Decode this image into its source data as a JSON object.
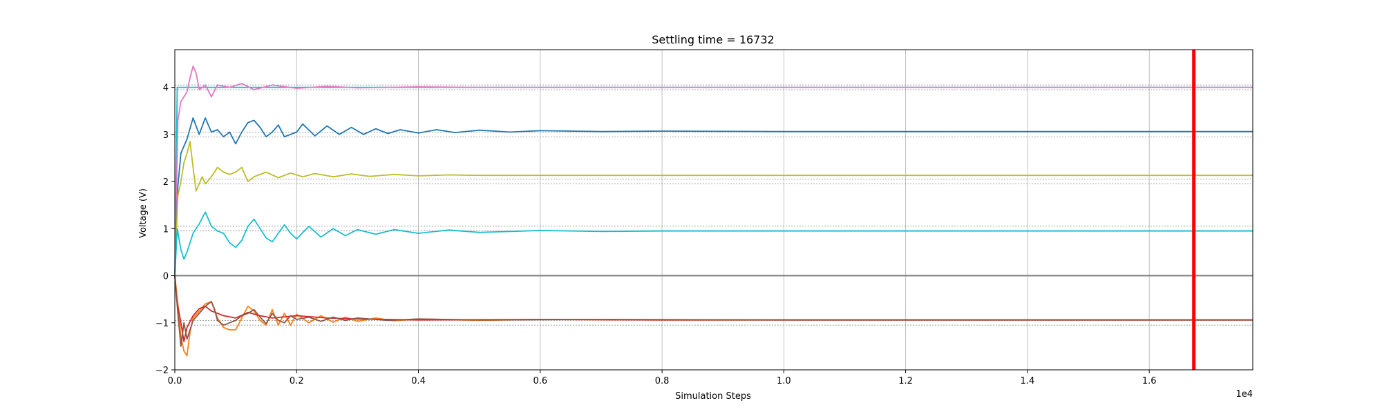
{
  "chart_data": {
    "type": "line",
    "title": "Settling time = 16732",
    "xlabel": "Simulation Steps",
    "ylabel": "Voltage (V)",
    "x_offset_text": "1e4",
    "xlim": [
      0,
      1.77
    ],
    "ylim": [
      -2,
      4.8
    ],
    "xticks": [
      0.0,
      0.2,
      0.4,
      0.6,
      0.8,
      1.0,
      1.2,
      1.4,
      1.6
    ],
    "xtick_labels": [
      "0.0",
      "0.2",
      "0.4",
      "0.6",
      "0.8",
      "1.0",
      "1.2",
      "1.4",
      "1.6"
    ],
    "yticks": [
      -2,
      -1,
      0,
      1,
      2,
      3,
      4
    ],
    "ytick_labels": [
      "−2",
      "−1",
      "0",
      "1",
      "2",
      "3",
      "4"
    ],
    "grid": "vertical",
    "settling_marker": {
      "x": 1.6732,
      "color": "#ff0000"
    },
    "zero_line": {
      "y": 0,
      "color": "#808080"
    },
    "reference_bands": [
      {
        "center": 4.0,
        "half_width": 0.05
      },
      {
        "center": 3.0,
        "half_width": 0.05
      },
      {
        "center": 2.0,
        "half_width": 0.05
      },
      {
        "center": 1.0,
        "half_width": 0.05
      },
      {
        "center": -1.0,
        "half_width": 0.05
      }
    ],
    "series": [
      {
        "color": "#17becf",
        "points": [
          [
            0,
            0
          ],
          [
            0.004,
            4.0
          ],
          [
            0.02,
            4.0
          ],
          [
            1.77,
            4.0
          ]
        ]
      },
      {
        "color": "#e377c2",
        "points": [
          [
            0,
            0
          ],
          [
            0.005,
            3.3
          ],
          [
            0.01,
            3.7
          ],
          [
            0.02,
            3.9
          ],
          [
            0.025,
            4.2
          ],
          [
            0.03,
            4.45
          ],
          [
            0.035,
            4.3
          ],
          [
            0.04,
            3.95
          ],
          [
            0.05,
            4.05
          ],
          [
            0.06,
            3.8
          ],
          [
            0.07,
            4.05
          ],
          [
            0.09,
            4.0
          ],
          [
            0.11,
            4.08
          ],
          [
            0.13,
            3.95
          ],
          [
            0.16,
            4.05
          ],
          [
            0.2,
            3.98
          ],
          [
            0.25,
            4.02
          ],
          [
            0.3,
            3.99
          ],
          [
            0.4,
            4.01
          ],
          [
            0.5,
            4.0
          ],
          [
            1.77,
            4.0
          ]
        ]
      },
      {
        "color": "#1f77b4",
        "points": [
          [
            0,
            0
          ],
          [
            0.005,
            1.9
          ],
          [
            0.01,
            2.6
          ],
          [
            0.02,
            2.9
          ],
          [
            0.03,
            3.35
          ],
          [
            0.04,
            3.0
          ],
          [
            0.05,
            3.35
          ],
          [
            0.06,
            3.05
          ],
          [
            0.07,
            3.1
          ],
          [
            0.08,
            2.95
          ],
          [
            0.09,
            3.05
          ],
          [
            0.1,
            2.8
          ],
          [
            0.11,
            3.05
          ],
          [
            0.12,
            3.25
          ],
          [
            0.13,
            3.3
          ],
          [
            0.14,
            3.15
          ],
          [
            0.15,
            2.95
          ],
          [
            0.16,
            3.05
          ],
          [
            0.17,
            3.2
          ],
          [
            0.18,
            2.95
          ],
          [
            0.2,
            3.05
          ],
          [
            0.21,
            3.22
          ],
          [
            0.23,
            2.97
          ],
          [
            0.25,
            3.18
          ],
          [
            0.27,
            3.0
          ],
          [
            0.29,
            3.15
          ],
          [
            0.31,
            3.0
          ],
          [
            0.33,
            3.12
          ],
          [
            0.35,
            3.02
          ],
          [
            0.37,
            3.1
          ],
          [
            0.4,
            3.03
          ],
          [
            0.43,
            3.1
          ],
          [
            0.46,
            3.04
          ],
          [
            0.5,
            3.09
          ],
          [
            0.55,
            3.05
          ],
          [
            0.6,
            3.08
          ],
          [
            0.7,
            3.06
          ],
          [
            0.8,
            3.07
          ],
          [
            1.0,
            3.06
          ],
          [
            1.77,
            3.06
          ]
        ]
      },
      {
        "color": "#bcbd22",
        "points": [
          [
            0,
            0
          ],
          [
            0.005,
            1.7
          ],
          [
            0.01,
            2.0
          ],
          [
            0.015,
            2.4
          ],
          [
            0.02,
            2.6
          ],
          [
            0.025,
            2.85
          ],
          [
            0.03,
            2.3
          ],
          [
            0.035,
            1.8
          ],
          [
            0.045,
            2.1
          ],
          [
            0.05,
            1.95
          ],
          [
            0.06,
            2.1
          ],
          [
            0.07,
            2.3
          ],
          [
            0.08,
            2.2
          ],
          [
            0.09,
            2.15
          ],
          [
            0.1,
            2.2
          ],
          [
            0.11,
            2.3
          ],
          [
            0.12,
            2.0
          ],
          [
            0.13,
            2.1
          ],
          [
            0.15,
            2.2
          ],
          [
            0.17,
            2.08
          ],
          [
            0.19,
            2.18
          ],
          [
            0.21,
            2.1
          ],
          [
            0.23,
            2.17
          ],
          [
            0.26,
            2.1
          ],
          [
            0.29,
            2.16
          ],
          [
            0.32,
            2.11
          ],
          [
            0.36,
            2.15
          ],
          [
            0.4,
            2.12
          ],
          [
            0.45,
            2.14
          ],
          [
            0.5,
            2.13
          ],
          [
            0.6,
            2.13
          ],
          [
            1.77,
            2.13
          ]
        ]
      },
      {
        "color": "#17becf",
        "points": [
          [
            0,
            0
          ],
          [
            0.004,
            1.0
          ],
          [
            0.01,
            0.55
          ],
          [
            0.015,
            0.35
          ],
          [
            0.02,
            0.5
          ],
          [
            0.03,
            0.9
          ],
          [
            0.04,
            1.1
          ],
          [
            0.05,
            1.35
          ],
          [
            0.06,
            1.05
          ],
          [
            0.07,
            0.95
          ],
          [
            0.08,
            0.9
          ],
          [
            0.09,
            0.7
          ],
          [
            0.1,
            0.6
          ],
          [
            0.11,
            0.75
          ],
          [
            0.12,
            1.05
          ],
          [
            0.13,
            1.2
          ],
          [
            0.14,
            1.0
          ],
          [
            0.15,
            0.8
          ],
          [
            0.16,
            0.72
          ],
          [
            0.17,
            0.9
          ],
          [
            0.18,
            1.08
          ],
          [
            0.19,
            0.9
          ],
          [
            0.2,
            0.78
          ],
          [
            0.22,
            1.05
          ],
          [
            0.24,
            0.82
          ],
          [
            0.26,
            1.0
          ],
          [
            0.28,
            0.85
          ],
          [
            0.3,
            0.98
          ],
          [
            0.33,
            0.88
          ],
          [
            0.36,
            0.98
          ],
          [
            0.4,
            0.9
          ],
          [
            0.45,
            0.97
          ],
          [
            0.5,
            0.92
          ],
          [
            0.6,
            0.96
          ],
          [
            0.7,
            0.94
          ],
          [
            0.8,
            0.95
          ],
          [
            1.0,
            0.95
          ],
          [
            1.77,
            0.95
          ]
        ]
      },
      {
        "color": "#ff7f0e",
        "points": [
          [
            0,
            0
          ],
          [
            0.005,
            -0.6
          ],
          [
            0.01,
            -1.3
          ],
          [
            0.015,
            -1.6
          ],
          [
            0.02,
            -1.7
          ],
          [
            0.025,
            -1.2
          ],
          [
            0.03,
            -0.9
          ],
          [
            0.04,
            -0.75
          ],
          [
            0.05,
            -0.6
          ],
          [
            0.06,
            -0.55
          ],
          [
            0.07,
            -0.9
          ],
          [
            0.08,
            -1.1
          ],
          [
            0.09,
            -1.15
          ],
          [
            0.1,
            -1.15
          ],
          [
            0.11,
            -0.9
          ],
          [
            0.12,
            -0.65
          ],
          [
            0.13,
            -0.75
          ],
          [
            0.14,
            -0.95
          ],
          [
            0.15,
            -1.05
          ],
          [
            0.16,
            -0.72
          ],
          [
            0.17,
            -1.05
          ],
          [
            0.18,
            -0.8
          ],
          [
            0.19,
            -1.05
          ],
          [
            0.2,
            -0.82
          ],
          [
            0.22,
            -1.0
          ],
          [
            0.24,
            -0.85
          ],
          [
            0.26,
            -0.99
          ],
          [
            0.28,
            -0.88
          ],
          [
            0.3,
            -0.97
          ],
          [
            0.33,
            -0.9
          ],
          [
            0.36,
            -0.96
          ],
          [
            0.4,
            -0.92
          ],
          [
            0.5,
            -0.95
          ],
          [
            0.6,
            -0.93
          ],
          [
            0.8,
            -0.94
          ],
          [
            1.0,
            -0.94
          ],
          [
            1.77,
            -0.94
          ]
        ]
      },
      {
        "color": "#d62728",
        "points": [
          [
            0,
            0
          ],
          [
            0.003,
            -0.5
          ],
          [
            0.01,
            -1.0
          ],
          [
            0.015,
            -1.4
          ],
          [
            0.02,
            -1.1
          ],
          [
            0.03,
            -0.85
          ],
          [
            0.04,
            -0.7
          ],
          [
            0.05,
            -0.65
          ],
          [
            0.06,
            -0.75
          ],
          [
            0.08,
            -0.85
          ],
          [
            0.1,
            -0.9
          ],
          [
            0.12,
            -0.78
          ],
          [
            0.14,
            -0.85
          ],
          [
            0.16,
            -0.9
          ],
          [
            0.2,
            -0.85
          ],
          [
            0.25,
            -0.9
          ],
          [
            0.3,
            -0.92
          ],
          [
            0.4,
            -0.94
          ],
          [
            0.6,
            -0.93
          ],
          [
            0.8,
            -0.94
          ],
          [
            1.0,
            -0.94
          ],
          [
            1.77,
            -0.94
          ]
        ]
      },
      {
        "color": "#8c564b",
        "points": [
          [
            0,
            0
          ],
          [
            0.005,
            -0.8
          ],
          [
            0.01,
            -1.5
          ],
          [
            0.015,
            -1.0
          ],
          [
            0.02,
            -1.35
          ],
          [
            0.03,
            -0.95
          ],
          [
            0.04,
            -0.8
          ],
          [
            0.05,
            -0.65
          ],
          [
            0.06,
            -0.55
          ],
          [
            0.065,
            -0.7
          ],
          [
            0.07,
            -0.95
          ],
          [
            0.08,
            -1.05
          ],
          [
            0.09,
            -1.0
          ],
          [
            0.1,
            -0.95
          ],
          [
            0.11,
            -0.85
          ],
          [
            0.12,
            -0.8
          ],
          [
            0.13,
            -0.72
          ],
          [
            0.14,
            -0.88
          ],
          [
            0.15,
            -1.02
          ],
          [
            0.16,
            -0.8
          ],
          [
            0.17,
            -0.95
          ],
          [
            0.18,
            -1.0
          ],
          [
            0.19,
            -0.85
          ],
          [
            0.2,
            -0.93
          ],
          [
            0.22,
            -0.88
          ],
          [
            0.24,
            -0.97
          ],
          [
            0.26,
            -0.88
          ],
          [
            0.28,
            -0.95
          ],
          [
            0.3,
            -0.9
          ],
          [
            0.35,
            -0.95
          ],
          [
            0.4,
            -0.92
          ],
          [
            0.5,
            -0.94
          ],
          [
            0.7,
            -0.93
          ],
          [
            1.0,
            -0.94
          ],
          [
            1.77,
            -0.94
          ]
        ]
      }
    ]
  }
}
